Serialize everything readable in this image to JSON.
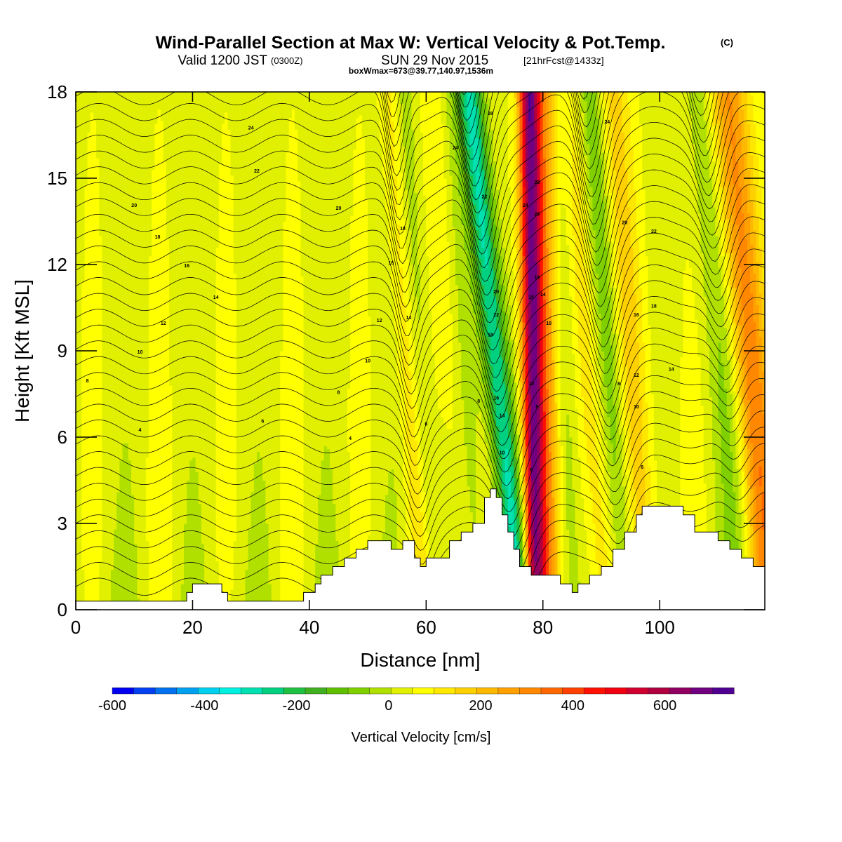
{
  "chart_data": {
    "type": "heatmap",
    "title": "Wind-Parallel Section at Max W: Vertical Velocity & Pot.Temp.",
    "title_mark": "(C)",
    "subtitle": {
      "valid": "Valid 1200 JST",
      "utc": "(0300Z)",
      "date": "SUN 29 Nov 2015",
      "forecast": "[21hrFcst@1433z]"
    },
    "subtitle2": "boxWmax=673@39.77,140.97,1536m",
    "xlabel": "Distance [nm]",
    "ylabel": "Height [Kft MSL]",
    "xlim": [
      0,
      118
    ],
    "ylim": [
      0,
      18
    ],
    "x_ticks": [
      {
        "value": 0,
        "label": "0"
      },
      {
        "value": 20,
        "label": "20"
      },
      {
        "value": 40,
        "label": "40"
      },
      {
        "value": 60,
        "label": "60"
      },
      {
        "value": 80,
        "label": "80"
      },
      {
        "value": 100,
        "label": "100"
      }
    ],
    "y_ticks": [
      {
        "value": 0,
        "label": "0"
      },
      {
        "value": 3,
        "label": "3"
      },
      {
        "value": 6,
        "label": "6"
      },
      {
        "value": 9,
        "label": "9"
      },
      {
        "value": 12,
        "label": "12"
      },
      {
        "value": 15,
        "label": "15"
      },
      {
        "value": 18,
        "label": "18"
      }
    ],
    "colorbar": {
      "label": "Vertical Velocity [cm/s]",
      "min": -600,
      "max": 750,
      "tick_labels": [
        {
          "value": -600,
          "label": "-600"
        },
        {
          "value": -400,
          "label": "-400"
        },
        {
          "value": -200,
          "label": "-200"
        },
        {
          "value": 0,
          "label": "0"
        },
        {
          "value": 200,
          "label": "200"
        },
        {
          "value": 400,
          "label": "400"
        },
        {
          "value": 600,
          "label": "600"
        }
      ],
      "colors": [
        "#0000f0",
        "#0040f0",
        "#0070f0",
        "#00a0f0",
        "#00d0f0",
        "#00f0e0",
        "#00e0b0",
        "#00d080",
        "#20c040",
        "#40b020",
        "#60c000",
        "#80d000",
        "#b0e000",
        "#e0f000",
        "#ffff00",
        "#ffe800",
        "#ffd000",
        "#ffb800",
        "#ffa000",
        "#ff8800",
        "#ff6800",
        "#ff4000",
        "#ff1000",
        "#f00010",
        "#d00030",
        "#b00040",
        "#900060",
        "#700080",
        "#500090"
      ]
    },
    "terrain": [
      [
        0,
        0.3
      ],
      [
        4,
        0.3
      ],
      [
        8,
        0.3
      ],
      [
        12,
        0.3
      ],
      [
        16,
        0.3
      ],
      [
        18,
        0.3
      ],
      [
        19,
        0.6
      ],
      [
        20,
        0.9
      ],
      [
        22,
        0.9
      ],
      [
        24,
        0.9
      ],
      [
        25,
        0.6
      ],
      [
        26,
        0.3
      ],
      [
        30,
        0.3
      ],
      [
        34,
        0.3
      ],
      [
        38,
        0.3
      ],
      [
        39,
        0.6
      ],
      [
        40,
        0.6
      ],
      [
        41,
        0.9
      ],
      [
        42,
        1.2
      ],
      [
        44,
        1.5
      ],
      [
        46,
        1.8
      ],
      [
        48,
        2.1
      ],
      [
        50,
        2.4
      ],
      [
        52,
        2.4
      ],
      [
        54,
        2.1
      ],
      [
        56,
        2.4
      ],
      [
        58,
        1.8
      ],
      [
        59,
        1.5
      ],
      [
        60,
        1.8
      ],
      [
        62,
        1.8
      ],
      [
        64,
        2.4
      ],
      [
        66,
        2.7
      ],
      [
        68,
        3.0
      ],
      [
        70,
        3.9
      ],
      [
        71,
        4.2
      ],
      [
        72,
        3.9
      ],
      [
        73,
        3.3
      ],
      [
        74,
        2.7
      ],
      [
        75,
        2.1
      ],
      [
        76,
        1.5
      ],
      [
        78,
        1.2
      ],
      [
        80,
        1.2
      ],
      [
        82,
        1.2
      ],
      [
        83,
        0.9
      ],
      [
        85,
        0.6
      ],
      [
        86,
        0.9
      ],
      [
        88,
        1.2
      ],
      [
        90,
        1.5
      ],
      [
        92,
        2.1
      ],
      [
        94,
        2.7
      ],
      [
        96,
        3.3
      ],
      [
        97,
        3.6
      ],
      [
        100,
        3.6
      ],
      [
        102,
        3.6
      ],
      [
        104,
        3.3
      ],
      [
        106,
        2.7
      ],
      [
        108,
        2.7
      ],
      [
        110,
        2.4
      ],
      [
        112,
        2.1
      ],
      [
        114,
        1.8
      ],
      [
        116,
        1.5
      ],
      [
        118,
        1.5
      ]
    ],
    "contour_labels": [
      {
        "x": 30,
        "y": 16.7,
        "text": "24"
      },
      {
        "x": 31,
        "y": 15.2,
        "text": "22"
      },
      {
        "x": 10,
        "y": 14.0,
        "text": "20"
      },
      {
        "x": 14,
        "y": 12.9,
        "text": "18"
      },
      {
        "x": 19,
        "y": 11.9,
        "text": "16"
      },
      {
        "x": 24,
        "y": 10.8,
        "text": "14"
      },
      {
        "x": 15,
        "y": 9.9,
        "text": "12"
      },
      {
        "x": 11,
        "y": 8.9,
        "text": "10"
      },
      {
        "x": 2,
        "y": 7.9,
        "text": "8"
      },
      {
        "x": 11,
        "y": 6.2,
        "text": "4"
      },
      {
        "x": 32,
        "y": 6.5,
        "text": "6"
      },
      {
        "x": 45,
        "y": 7.5,
        "text": "8"
      },
      {
        "x": 47,
        "y": 5.9,
        "text": "4"
      },
      {
        "x": 50,
        "y": 8.6,
        "text": "10"
      },
      {
        "x": 52,
        "y": 10.0,
        "text": "12"
      },
      {
        "x": 54,
        "y": 12.0,
        "text": "16"
      },
      {
        "x": 56,
        "y": 13.2,
        "text": "18"
      },
      {
        "x": 45,
        "y": 13.9,
        "text": "20"
      },
      {
        "x": 57,
        "y": 10.1,
        "text": "14"
      },
      {
        "x": 60,
        "y": 6.4,
        "text": "6"
      },
      {
        "x": 65,
        "y": 16.0,
        "text": "24"
      },
      {
        "x": 70,
        "y": 14.3,
        "text": "22"
      },
      {
        "x": 71,
        "y": 17.2,
        "text": "28"
      },
      {
        "x": 72,
        "y": 11.0,
        "text": "20"
      },
      {
        "x": 72,
        "y": 10.2,
        "text": "22"
      },
      {
        "x": 71,
        "y": 9.5,
        "text": "18"
      },
      {
        "x": 72,
        "y": 7.3,
        "text": "16"
      },
      {
        "x": 73,
        "y": 6.7,
        "text": "14"
      },
      {
        "x": 73,
        "y": 5.4,
        "text": "10"
      },
      {
        "x": 69,
        "y": 7.2,
        "text": "8"
      },
      {
        "x": 77,
        "y": 14.0,
        "text": "24"
      },
      {
        "x": 79,
        "y": 14.8,
        "text": "28"
      },
      {
        "x": 79,
        "y": 13.7,
        "text": "26"
      },
      {
        "x": 79,
        "y": 11.5,
        "text": "16"
      },
      {
        "x": 80,
        "y": 10.9,
        "text": "14"
      },
      {
        "x": 78,
        "y": 10.8,
        "text": "15"
      },
      {
        "x": 81,
        "y": 9.9,
        "text": "10"
      },
      {
        "x": 78,
        "y": 7.8,
        "text": "10"
      },
      {
        "x": 79,
        "y": 7.0,
        "text": "8"
      },
      {
        "x": 78,
        "y": 4.8,
        "text": "6"
      },
      {
        "x": 91,
        "y": 16.9,
        "text": "24"
      },
      {
        "x": 94,
        "y": 13.4,
        "text": "20"
      },
      {
        "x": 99,
        "y": 13.1,
        "text": "22"
      },
      {
        "x": 96,
        "y": 10.2,
        "text": "16"
      },
      {
        "x": 99,
        "y": 10.5,
        "text": "18"
      },
      {
        "x": 93,
        "y": 7.8,
        "text": "8"
      },
      {
        "x": 96,
        "y": 8.1,
        "text": "12"
      },
      {
        "x": 102,
        "y": 8.3,
        "text": "14"
      },
      {
        "x": 96,
        "y": 7.0,
        "text": "10"
      },
      {
        "x": 97,
        "y": 4.9,
        "text": "6"
      }
    ]
  }
}
